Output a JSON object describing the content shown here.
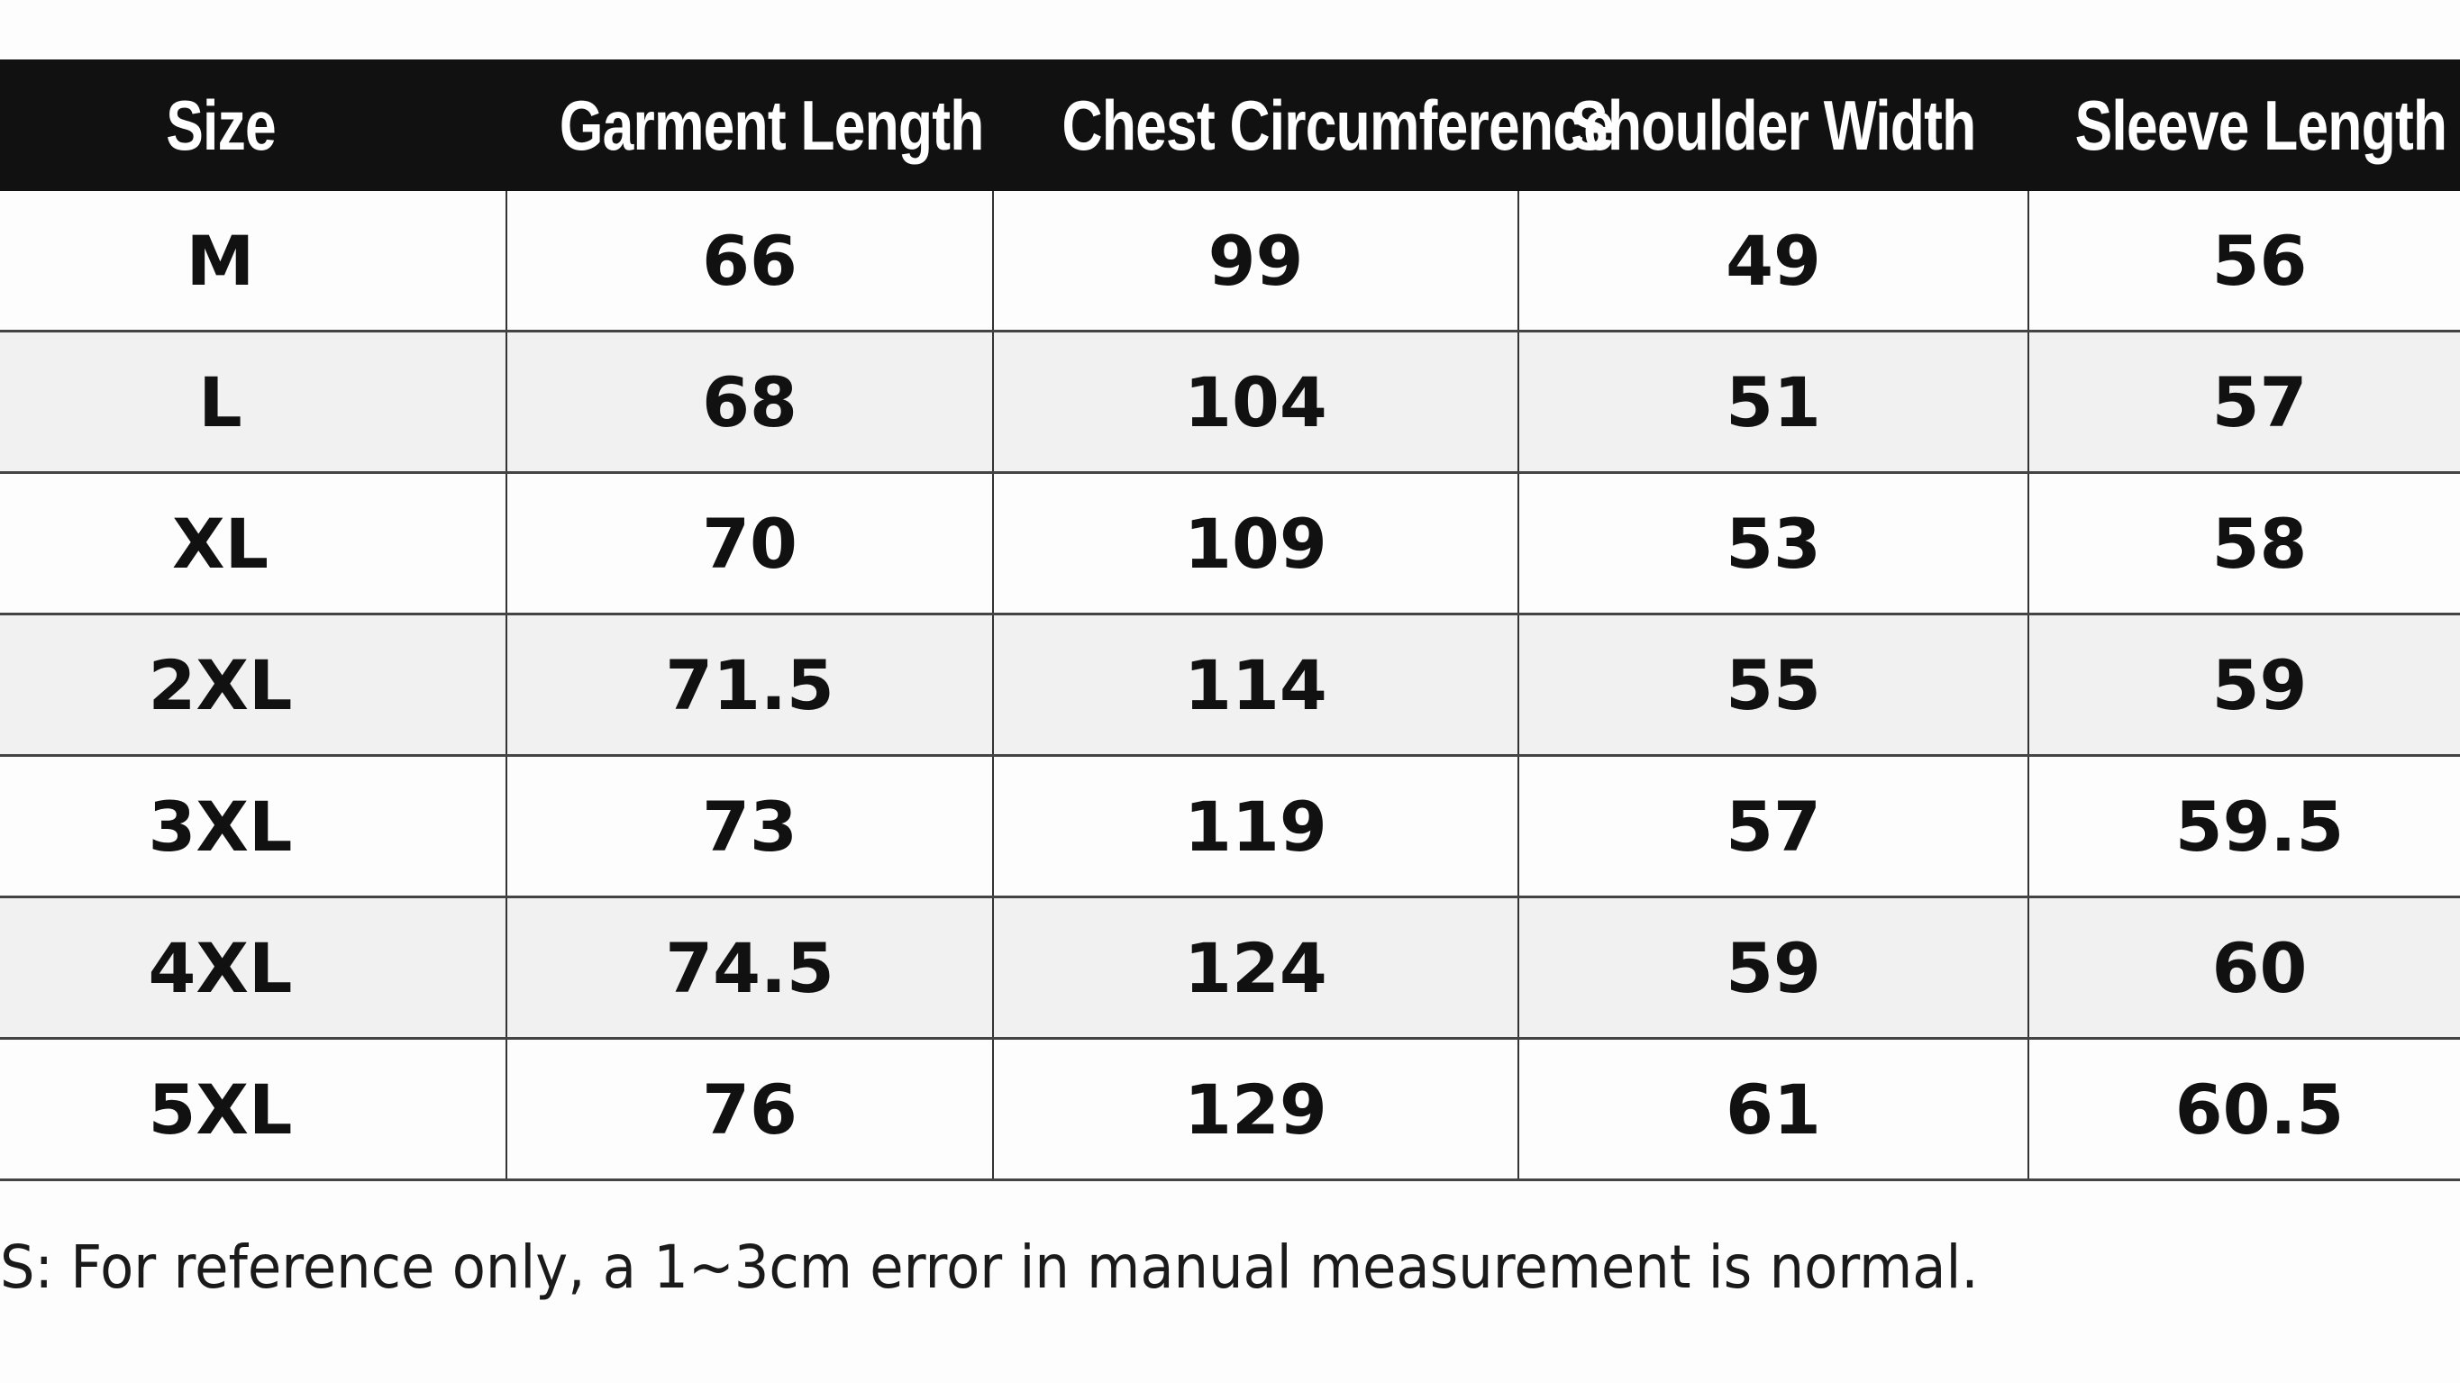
{
  "table": {
    "headers": [
      "Size",
      "Garment Length",
      "Chest Circumference",
      "Shoulder Width",
      "Sleeve Length"
    ],
    "rows": [
      [
        "M",
        "66",
        "99",
        "49",
        "56"
      ],
      [
        "L",
        "68",
        "104",
        "51",
        "57"
      ],
      [
        "XL",
        "70",
        "109",
        "53",
        "58"
      ],
      [
        "2XL",
        "71.5",
        "114",
        "55",
        "59"
      ],
      [
        "3XL",
        "73",
        "119",
        "57",
        "59.5"
      ],
      [
        "4XL",
        "74.5",
        "124",
        "59",
        "60"
      ],
      [
        "5XL",
        "76",
        "129",
        "61",
        "60.5"
      ]
    ]
  },
  "footnote": "S: For reference only, a 1~3cm error in manual measurement is normal.",
  "colors": {
    "header_bg": "#111111",
    "header_text": "#ffffff",
    "alt_row_bg": "#f1f1f1",
    "grid_line": "#444444"
  }
}
